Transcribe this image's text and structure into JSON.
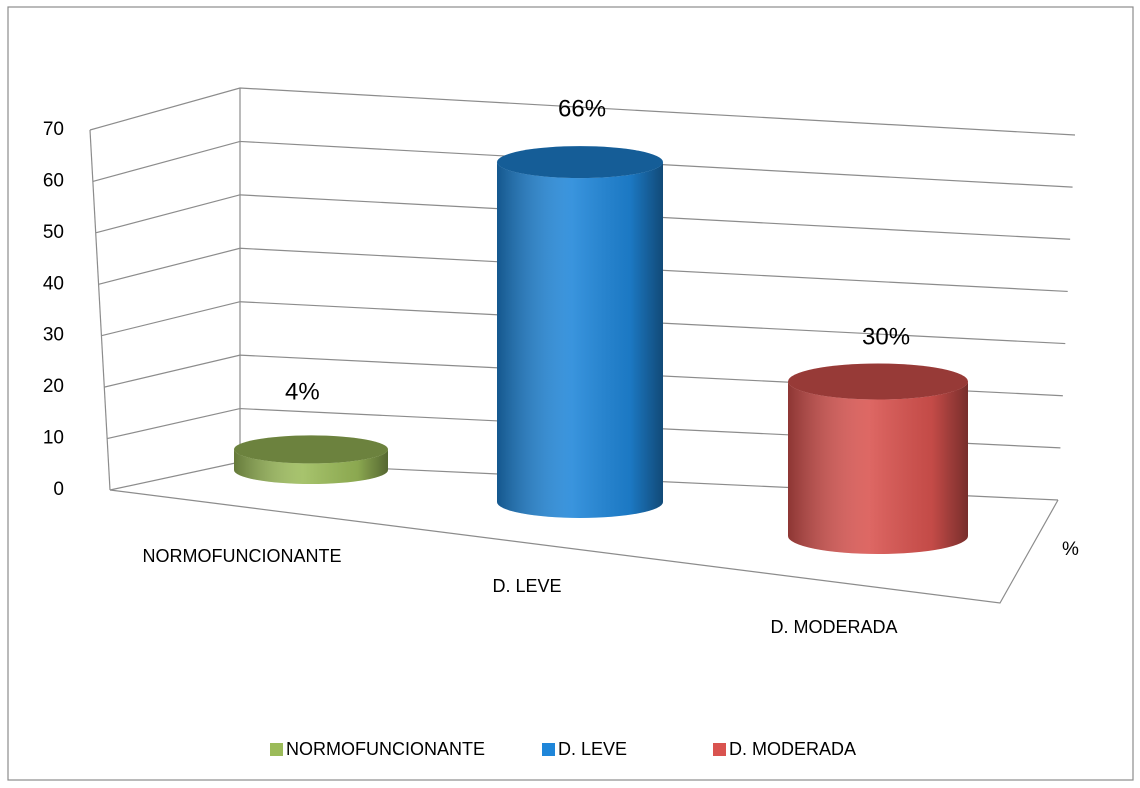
{
  "chart_data": {
    "type": "bar3d",
    "categories": [
      "NORMOFUNCIONANTE",
      "D. LEVE",
      "D. MODERADA"
    ],
    "colors": [
      "#9bbb59",
      "#1f86d9",
      "#d9534f"
    ],
    "series": [
      {
        "name": "%",
        "values": [
          4,
          66,
          30
        ],
        "value_labels": [
          "4%",
          "66%",
          "30%"
        ]
      }
    ],
    "ylim": [
      0,
      70
    ],
    "yticks": [
      0,
      10,
      20,
      30,
      40,
      50,
      60,
      70
    ],
    "grid": true,
    "legend": "bottom"
  }
}
